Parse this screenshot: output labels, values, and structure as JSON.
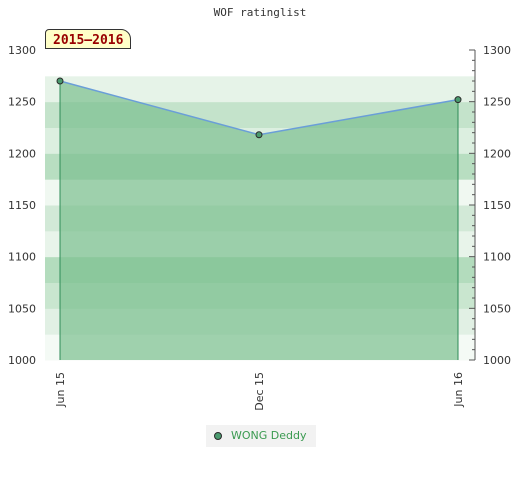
{
  "title": "WOF ratinglist",
  "season_label": "2015–2016",
  "colors": {
    "line": "#6a9ed8",
    "fill": "#7bbf8e",
    "marker": "#4a9a6e",
    "drop_line": "#2e8b57",
    "legend_text": "#3a9a50"
  },
  "chart_data": {
    "type": "area",
    "title": "WOF ratinglist",
    "x": [
      "Jun 15",
      "Dec 15",
      "Jun 16"
    ],
    "series": [
      {
        "name": "WONG Deddy",
        "values": [
          1270,
          1218,
          1252
        ]
      }
    ],
    "ylim": [
      1000,
      1300
    ],
    "y_ticks": [
      1000,
      1050,
      1100,
      1150,
      1200,
      1250,
      1300
    ],
    "y_axis": "both sides",
    "grid": false,
    "legend": "bottom-center"
  }
}
